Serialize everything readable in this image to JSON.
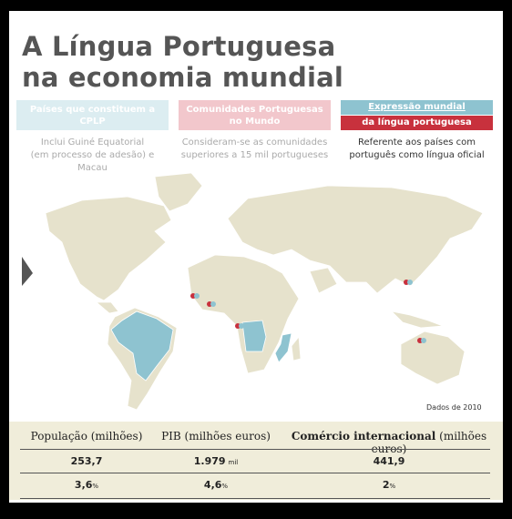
{
  "title": [
    "A Língua Portuguesa",
    "na economia mundial"
  ],
  "legend": [
    {
      "label": [
        "Países que constituem a CPLP"
      ],
      "note": [
        "Inclui Guiné Equatorial",
        "(em processo de adesão) e Macau"
      ]
    },
    {
      "label": [
        "Comunidades Portuguesas",
        "no Mundo"
      ],
      "note": [
        "Consideram-se as comunidades",
        "superiores a 15 mil portugueses"
      ]
    },
    {
      "label": [
        "Expressão mundial",
        "da língua portuguesa"
      ],
      "note": [
        "Referente aos países com",
        "português como língua oficial"
      ]
    }
  ],
  "source": "Dados de 2010",
  "table": {
    "headers": [
      "População (milhões)",
      "PIB (milhões euros)",
      {
        "bold": "Comércio internacional",
        "rest": "(milhões euros)"
      }
    ],
    "rows": [
      [
        {
          "value": "253,7"
        },
        {
          "value": "1.979",
          "unit": "mil"
        },
        {
          "value": "441,9"
        }
      ],
      [
        {
          "value": "3,6",
          "unit": "%"
        },
        {
          "value": "4,6",
          "unit": "%"
        },
        {
          "value": "2",
          "unit": "%"
        }
      ]
    ]
  }
}
